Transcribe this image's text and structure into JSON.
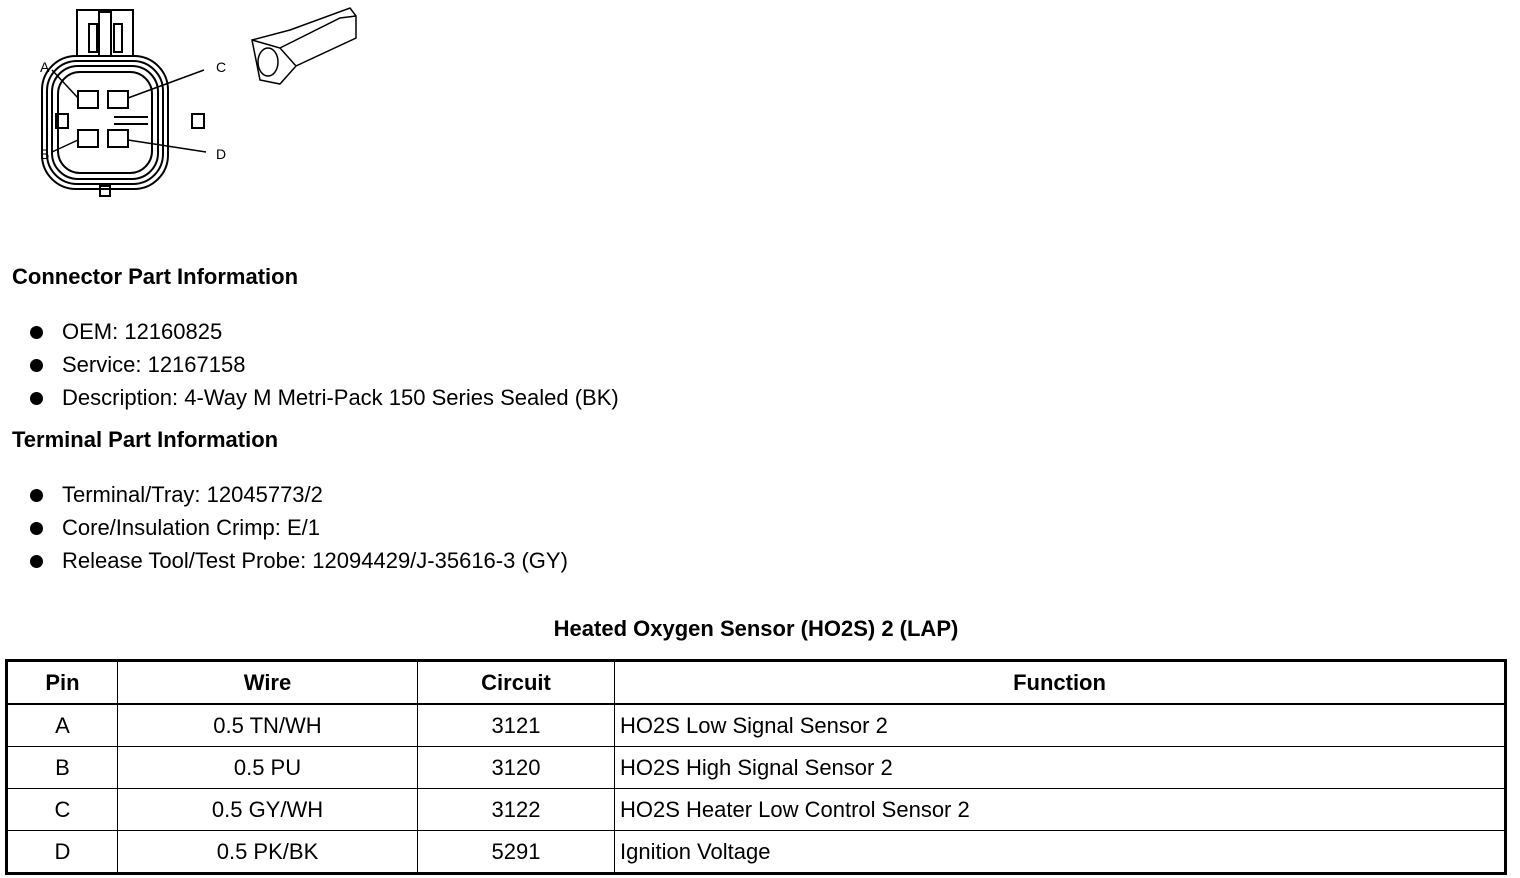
{
  "diagram": {
    "pin_labels": [
      "A",
      "B",
      "C",
      "D"
    ]
  },
  "connector_part": {
    "heading": "Connector Part Information",
    "items": [
      "OEM: 12160825",
      "Service: 12167158",
      "Description: 4-Way M Metri-Pack 150 Series Sealed (BK)"
    ]
  },
  "terminal_part": {
    "heading": "Terminal Part Information",
    "items": [
      "Terminal/Tray: 12045773/2",
      "Core/Insulation Crimp: E/1",
      "Release Tool/Test Probe: 12094429/J-35616-3 (GY)"
    ]
  },
  "table": {
    "title": "Heated Oxygen Sensor (HO2S) 2 (LAP)",
    "headers": [
      "Pin",
      "Wire",
      "Circuit",
      "Function"
    ],
    "rows": [
      [
        "A",
        "0.5 TN/WH",
        "3121",
        "HO2S Low Signal Sensor 2"
      ],
      [
        "B",
        "0.5 PU",
        "3120",
        "HO2S High Signal Sensor 2"
      ],
      [
        "C",
        "0.5 GY/WH",
        "3122",
        "HO2S Heater Low Control Sensor 2"
      ],
      [
        "D",
        "0.5 PK/BK",
        "5291",
        "Ignition Voltage"
      ]
    ]
  }
}
